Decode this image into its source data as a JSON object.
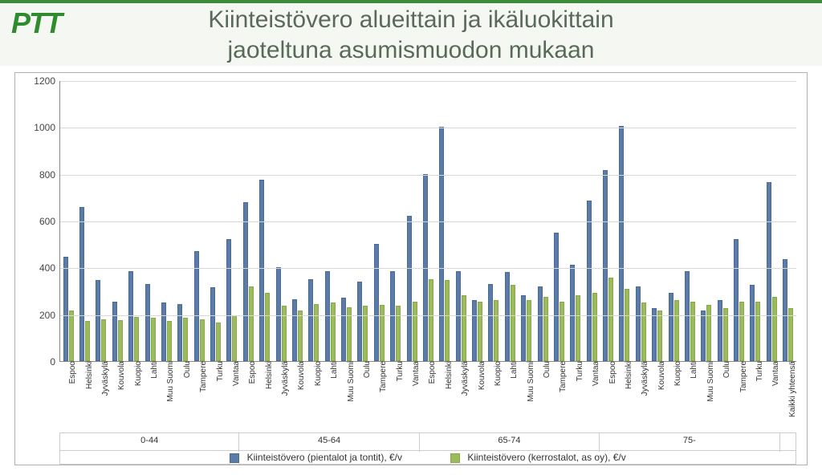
{
  "title_line1": "Kiinteistövero alueittain ja ikäluokittain",
  "title_line2": "jaoteltuna asumismuodon mukaan",
  "logo_text": "PTT",
  "chart": {
    "type": "bar",
    "ylim": [
      0,
      1200
    ],
    "ytick_step": 200,
    "yticks": [
      0,
      200,
      400,
      600,
      800,
      1000,
      1200
    ],
    "background_color": "#ffffff",
    "grid_color": "#d8d8d8",
    "series": [
      {
        "name": "Kiinteistövero (pientalot ja tontit), €/v",
        "color": "#5b7ba8"
      },
      {
        "name": "Kiinteistövero (kerrostalot, as oy), €/v",
        "color": "#9cbb5a"
      }
    ],
    "regions": [
      "Espoo",
      "Helsinki",
      "Jyväskylä",
      "Kouvola",
      "Kuopio",
      "Lahti",
      "Muu Suomi",
      "Oulu",
      "Tampere",
      "Turku",
      "Vantaa"
    ],
    "age_groups": [
      "0-44",
      "45-64",
      "65-74",
      "75-"
    ],
    "data": {
      "0-44": {
        "Espoo": [
          445,
          215
        ],
        "Helsinki": [
          660,
          170
        ],
        "Jyväskylä": [
          345,
          180
        ],
        "Kouvola": [
          255,
          175
        ],
        "Kuopio": [
          385,
          190
        ],
        "Lahti": [
          330,
          185
        ],
        "Muu Suomi": [
          250,
          170
        ],
        "Oulu": [
          245,
          185
        ],
        "Tampere": [
          470,
          180
        ],
        "Turku": [
          315,
          165
        ],
        "Vantaa": [
          520,
          195
        ]
      },
      "45-64": {
        "Espoo": [
          680,
          320
        ],
        "Helsinki": [
          775,
          290
        ],
        "Jyväskylä": [
          400,
          235
        ],
        "Kouvola": [
          265,
          215
        ],
        "Kuopio": [
          350,
          245
        ],
        "Lahti": [
          385,
          250
        ],
        "Muu Suomi": [
          270,
          230
        ],
        "Oulu": [
          340,
          235
        ],
        "Tampere": [
          500,
          240
        ],
        "Turku": [
          385,
          235
        ],
        "Vantaa": [
          620,
          255
        ]
      },
      "65-74": {
        "Espoo": [
          800,
          350
        ],
        "Helsinki": [
          1000,
          345
        ],
        "Jyväskylä": [
          385,
          280
        ],
        "Kouvola": [
          260,
          255
        ],
        "Kuopio": [
          330,
          260
        ],
        "Lahti": [
          380,
          325
        ],
        "Muu Suomi": [
          280,
          260
        ],
        "Oulu": [
          320,
          275
        ],
        "Tampere": [
          550,
          255
        ],
        "Turku": [
          410,
          280
        ],
        "Vantaa": [
          685,
          290
        ]
      },
      "75-": {
        "Espoo": [
          815,
          355
        ],
        "Helsinki": [
          1005,
          310
        ],
        "Jyväskylä": [
          320,
          250
        ],
        "Kouvola": [
          225,
          215
        ],
        "Kuopio": [
          290,
          260
        ],
        "Lahti": [
          385,
          255
        ],
        "Muu Suomi": [
          215,
          240
        ],
        "Oulu": [
          260,
          225
        ],
        "Tampere": [
          520,
          255
        ],
        "Turku": [
          325,
          255
        ],
        "Vantaa": [
          765,
          275
        ]
      }
    },
    "overall_label": "Kaikki yhteensä",
    "overall": [
      435,
      225
    ]
  }
}
